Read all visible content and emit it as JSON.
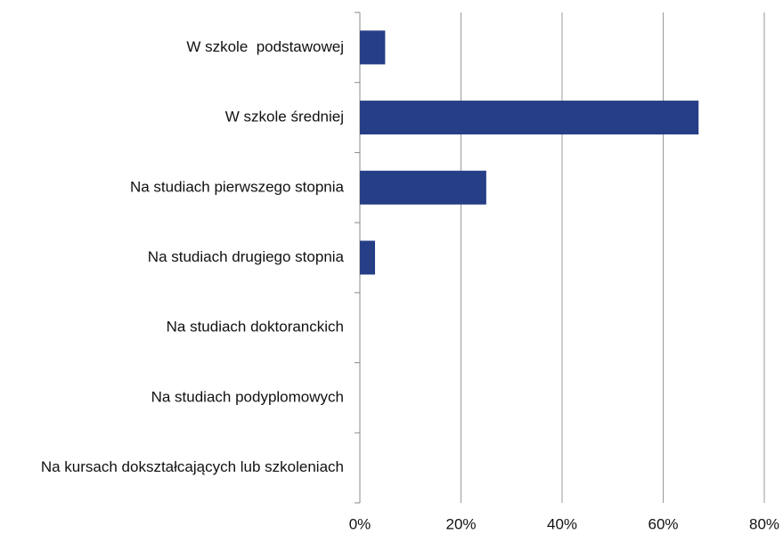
{
  "chart_data": {
    "type": "hbar",
    "categories": [
      "W szkole  podstawowej",
      "W szkole średniej",
      "Na studiach pierwszego stopnia",
      "Na studiach drugiego stopnia",
      "Na studiach doktoranckich",
      "Na studiach podyplomowych",
      "Na kursach dokształcających lub szkoleniach"
    ],
    "values": [
      5,
      67,
      25,
      3,
      0,
      0,
      0
    ],
    "color": "#263e86",
    "xlim": [
      0,
      80
    ],
    "xticks": [
      {
        "value": 0,
        "label": "0%"
      },
      {
        "value": 20,
        "label": "20%"
      },
      {
        "value": 40,
        "label": "40%"
      },
      {
        "value": 60,
        "label": "60%"
      },
      {
        "value": 80,
        "label": "80%"
      }
    ],
    "grid": true
  }
}
